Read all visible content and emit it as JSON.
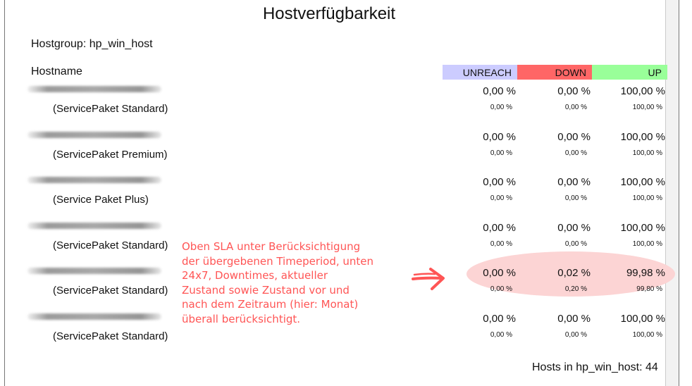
{
  "report": {
    "title": "Hostverfügbarkeit",
    "hostgroup_label": "Hostgroup: hp_win_host",
    "hostname_header": "Hostname",
    "columns": {
      "unreach": "UNREACH",
      "down": "DOWN",
      "up": "UP"
    },
    "colors": {
      "unreach": "#ccccff",
      "down": "#ff6666",
      "up": "#99ff99",
      "annotation": "#ff5555",
      "highlight": "#fcd4d4"
    },
    "rows": [
      {
        "package": "(ServicePaket Standard)",
        "unreach": "0,00 %",
        "down": "0,00 %",
        "up": "100,00 %",
        "unreach_small": "0,00  %",
        "down_small": "0,00  %",
        "up_small": "100,00  %"
      },
      {
        "package": "(ServicePaket Premium)",
        "unreach": "0,00 %",
        "down": "0,00 %",
        "up": "100,00 %",
        "unreach_small": "0,00  %",
        "down_small": "0,00  %",
        "up_small": "100,00  %"
      },
      {
        "package": "(Service Paket Plus)",
        "unreach": "0,00 %",
        "down": "0,00 %",
        "up": "100,00 %",
        "unreach_small": "0,00  %",
        "down_small": "0,00  %",
        "up_small": "100,00  %"
      },
      {
        "package": "(ServicePaket Standard)",
        "unreach": "0,00 %",
        "down": "0,00 %",
        "up": "100,00 %",
        "unreach_small": "0,00  %",
        "down_small": "0,00  %",
        "up_small": "100,00  %"
      },
      {
        "package": "(ServicePaket Standard)",
        "unreach": "0,00 %",
        "down": "0,02 %",
        "up": "99,98 %",
        "unreach_small": "0,00  %",
        "down_small": "0,20  %",
        "up_small": "99,80  %"
      },
      {
        "package": "(ServicePaket Standard)",
        "unreach": "0,00 %",
        "down": "0,00 %",
        "up": "100,00 %",
        "unreach_small": "0,00  %",
        "down_small": "0,00  %",
        "up_small": "100,00  %"
      }
    ],
    "annotation_lines": [
      "Oben SLA unter Berücksichtigung",
      "der übergebenen Timeperiod, unten",
      "24x7, Downtimes, aktueller",
      "Zustand sowie Zustand vor und",
      "nach dem Zeitraum (hier: Monat)",
      "überall berücksichtigt."
    ],
    "footer": "Hosts in hp_win_host: 44"
  }
}
